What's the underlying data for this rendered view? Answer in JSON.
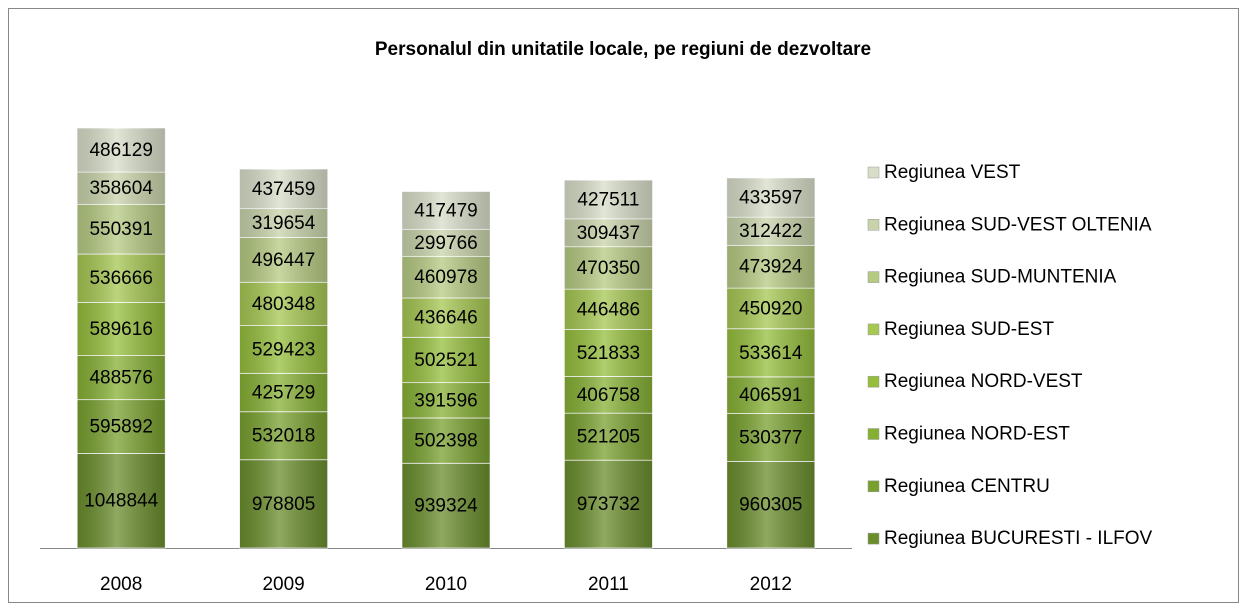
{
  "chart_data": {
    "type": "bar",
    "stacked": true,
    "title": "Personalul din unitatile locale, pe regiuni de dezvoltare",
    "categories": [
      "2008",
      "2009",
      "2010",
      "2011",
      "2012"
    ],
    "ylim": [
      0,
      5000000
    ],
    "legend": "right",
    "series": [
      {
        "name": "Regiunea BUCURESTI - ILFOV",
        "color": "#6a8d2c",
        "values": [
          1048844,
          978805,
          939324,
          973732,
          960305
        ]
      },
      {
        "name": "Regiunea CENTRU",
        "color": "#78a02e",
        "values": [
          595892,
          532018,
          502398,
          521205,
          530377
        ]
      },
      {
        "name": "Regiunea NORD-EST",
        "color": "#86b034",
        "values": [
          488576,
          425729,
          391596,
          406758,
          406591
        ]
      },
      {
        "name": "Regiunea NORD-VEST",
        "color": "#95be3c",
        "values": [
          589616,
          529423,
          502521,
          521833,
          533614
        ]
      },
      {
        "name": "Regiunea SUD-EST",
        "color": "#a6c752",
        "values": [
          536666,
          480348,
          436646,
          446486,
          450920
        ]
      },
      {
        "name": "Regiunea SUD-MUNTENIA",
        "color": "#b6ca82",
        "values": [
          550391,
          496447,
          460978,
          470350,
          473924
        ]
      },
      {
        "name": "Regiunea SUD-VEST OLTENIA",
        "color": "#c8d3aa",
        "values": [
          358604,
          319654,
          299766,
          309437,
          312422
        ]
      },
      {
        "name": "Regiunea VEST",
        "color": "#d8ddc8",
        "values": [
          486129,
          437459,
          417479,
          427511,
          433597
        ]
      }
    ]
  }
}
